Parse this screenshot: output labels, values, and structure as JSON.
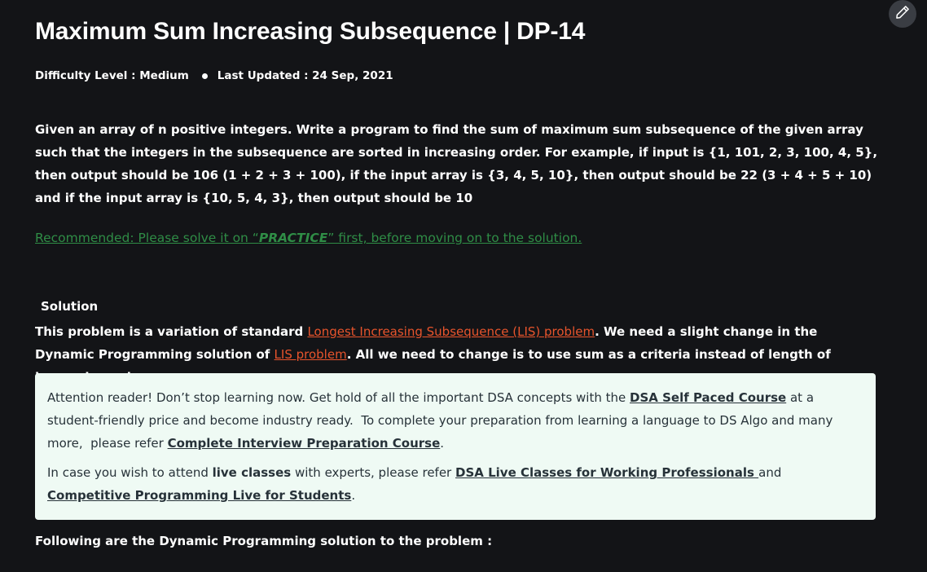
{
  "article": {
    "title": "Maximum Sum Increasing Subsequence | DP-14",
    "difficulty": "Difficulty Level : Medium",
    "last_updated": "Last Updated : 24 Sep, 2021",
    "intro": "Given an array of n positive integers. Write a program to find the sum of maximum sum subsequence of the given array such that the integers in the subsequence are sorted in increasing order. For example, if input is {1, 101, 2, 3, 100, 4, 5}, then output should be 106 (1 + 2 + 3 + 100), if the input array is {3, 4, 5, 10}, then output should be 22 (3 + 4 + 5 + 10) and if the input array is {10, 5, 4, 3}, then output should be 10",
    "recommended": {
      "prefix": "Recommended: Please solve it on “",
      "practice": "PRACTICE",
      "suffix": "” first, before moving on to the solution."
    },
    "solution_heading": "Solution",
    "solution": {
      "text1": "This problem is a variation of standard ",
      "link1": "Longest Increasing Subsequence (LIS) problem",
      "text2": ". We need a slight change in the Dynamic Programming solution of ",
      "link2": "LIS problem",
      "text3": ". All we need to change is to use sum as a criteria instead of length of increasing subsequence."
    },
    "following": "Following are the Dynamic Programming solution to the problem :"
  },
  "notice": {
    "p1_text1": "Attention reader! Don’t stop learning now. Get hold of all the important DSA concepts with the ",
    "p1_link1": "DSA Self Paced Course",
    "p1_text2": " at a student-friendly price and become industry ready.  To complete your preparation from learning a language to DS Algo and many more,  please refer ",
    "p1_link2": "Complete Interview Preparation Course",
    "p1_text3": ".",
    "p2_text1": "In case you wish to attend ",
    "p2_bold": "live classes",
    "p2_text2": " with experts, please refer ",
    "p2_link1": "DSA Live Classes for Working Professionals ",
    "p2_text3": "and ",
    "p2_link2": "Competitive Programming Live for Students",
    "p2_text4": "."
  },
  "icons": {
    "edit": "pencil-icon"
  },
  "colors": {
    "background": "#131417",
    "text": "#ffffff",
    "green_link": "#2f8d46",
    "orange_link": "#e8542c",
    "notice_bg": "#effaf4",
    "notice_text": "#273239",
    "edit_button_bg": "#3a3d43"
  }
}
